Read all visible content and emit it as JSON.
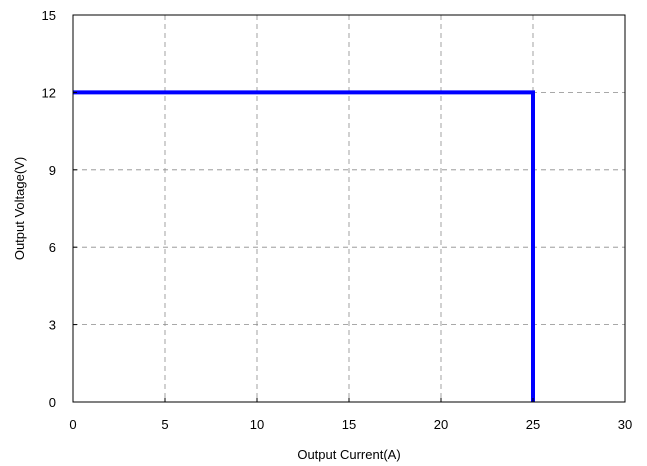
{
  "chart_data": {
    "type": "line",
    "title": "",
    "xlabel": "Output Current(A)",
    "ylabel": "Output Voltage(V)",
    "xlim": [
      0,
      30
    ],
    "ylim": [
      0,
      15
    ],
    "x_ticks": [
      0,
      5,
      10,
      15,
      20,
      25,
      30
    ],
    "y_ticks": [
      0,
      3,
      6,
      9,
      12,
      15
    ],
    "x_tick_labels": [
      "0",
      "5",
      "10",
      "15",
      "20",
      "25",
      "30"
    ],
    "y_tick_labels": [
      "0",
      "3",
      "6",
      "9",
      "12",
      "15"
    ],
    "grid": true,
    "grid_style": "dashed",
    "legend": "none",
    "series": [
      {
        "x": [
          0,
          25,
          25
        ],
        "y": [
          12,
          12,
          0
        ],
        "color": "#0000ff"
      }
    ]
  }
}
